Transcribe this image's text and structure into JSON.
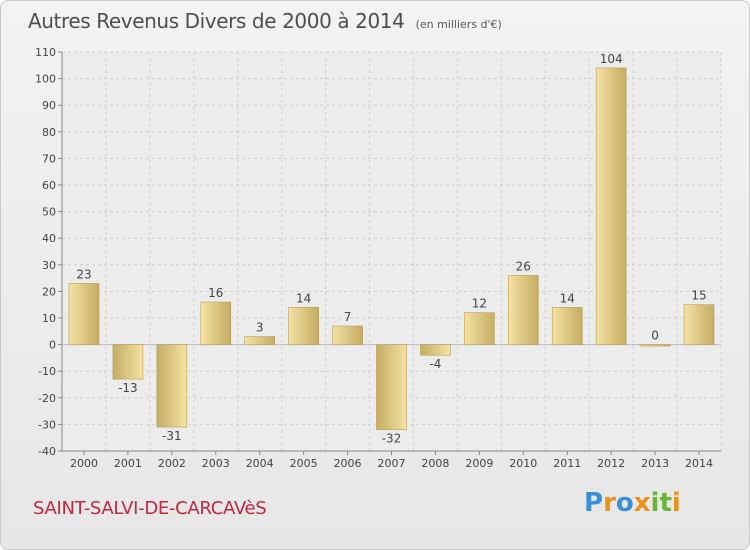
{
  "page": {
    "title": "Autres Revenus Divers de 2000 à 2014",
    "subtitle": "(en milliers d'€)",
    "commune": "SAINT-SALVI-DE-CARCAVèS",
    "logo": "Proxiti"
  },
  "colors": {
    "bar_light": "#f5e3a3",
    "bar_dark": "#c4ac62",
    "bar_border": "#b79e58",
    "grid": "#d0d0d0",
    "axis_text": "#444444",
    "title": "#4e4e4e",
    "commune": "#c0283e",
    "logo": [
      "#3a8fd6",
      "#e8941a",
      "#3a8fd6",
      "#e8941a",
      "#6bb33a",
      "#6bb33a",
      "#e8941a"
    ]
  },
  "chart_data": {
    "type": "bar",
    "title": "Autres Revenus Divers de 2000 à 2014",
    "xlabel": "",
    "ylabel": "",
    "categories": [
      "2000",
      "2001",
      "2002",
      "2003",
      "2004",
      "2005",
      "2006",
      "2007",
      "2008",
      "2009",
      "2010",
      "2011",
      "2012",
      "2013",
      "2014"
    ],
    "values": [
      23,
      -13,
      -31,
      16,
      3,
      14,
      7,
      -32,
      -4,
      12,
      26,
      14,
      104,
      0,
      15
    ],
    "value_labels": [
      "23",
      "-13",
      "-31",
      "16",
      "3",
      "14",
      "7",
      "-32",
      "-4",
      "12",
      "26",
      "14",
      "104",
      "0",
      "15"
    ],
    "ylim": [
      -40,
      110
    ],
    "yticks": [
      -40,
      -30,
      -20,
      -10,
      0,
      10,
      20,
      30,
      40,
      50,
      60,
      70,
      80,
      90,
      100,
      110
    ],
    "grid": true,
    "legend": "none"
  }
}
